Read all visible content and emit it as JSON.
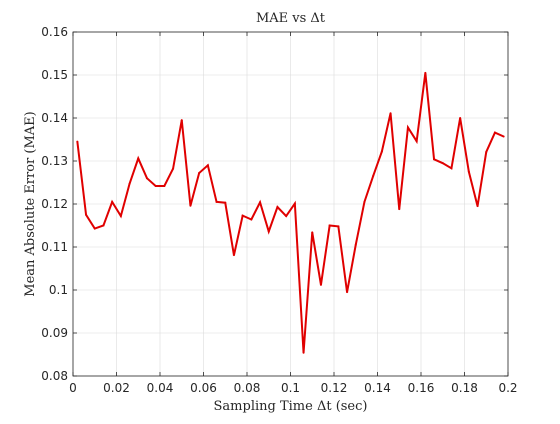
{
  "chart_data": {
    "type": "line",
    "title": "MAE vs Δt",
    "xlabel": "Sampling Time Δt (sec)",
    "ylabel": "Mean Absolute Error (MAE)",
    "xlim": [
      0,
      0.2
    ],
    "ylim": [
      0.08,
      0.16
    ],
    "grid": true,
    "x_ticks": [
      0,
      0.02,
      0.04,
      0.06,
      0.08,
      0.1,
      0.12,
      0.14,
      0.16,
      0.18,
      0.2
    ],
    "x_tick_labels": [
      "0",
      "0.02",
      "0.04",
      "0.06",
      "0.08",
      "0.1",
      "0.12",
      "0.14",
      "0.16",
      "0.18",
      "0.2"
    ],
    "y_ticks": [
      0.08,
      0.09,
      0.1,
      0.11,
      0.12,
      0.13,
      0.14,
      0.15,
      0.16
    ],
    "y_tick_labels": [
      "0.08",
      "0.09",
      "0.1",
      "0.11",
      "0.12",
      "0.13",
      "0.14",
      "0.15",
      "0.16"
    ],
    "series": [
      {
        "name": "MAE",
        "color": "#e00000",
        "x": [
          0.002,
          0.006,
          0.01,
          0.014,
          0.018,
          0.022,
          0.026,
          0.03,
          0.034,
          0.038,
          0.042,
          0.046,
          0.05,
          0.054,
          0.058,
          0.062,
          0.066,
          0.07,
          0.074,
          0.078,
          0.082,
          0.086,
          0.09,
          0.094,
          0.098,
          0.102,
          0.106,
          0.11,
          0.114,
          0.118,
          0.122,
          0.126,
          0.13,
          0.134,
          0.138,
          0.142,
          0.146,
          0.15,
          0.154,
          0.158,
          0.162,
          0.166,
          0.17,
          0.174,
          0.178,
          0.182,
          0.186,
          0.19,
          0.194,
          0.198
        ],
        "values": [
          0.1345,
          0.1175,
          0.1143,
          0.115,
          0.1205,
          0.1172,
          0.1247,
          0.1306,
          0.126,
          0.1242,
          0.1242,
          0.1282,
          0.1395,
          0.1196,
          0.1272,
          0.129,
          0.1205,
          0.1203,
          0.1081,
          0.1173,
          0.1164,
          0.1204,
          0.1136,
          0.1193,
          0.1172,
          0.1201,
          0.0854,
          0.1134,
          0.1012,
          0.115,
          0.1148,
          0.0995,
          0.1105,
          0.1205,
          0.1265,
          0.1322,
          0.1411,
          0.1188,
          0.1378,
          0.1346,
          0.1505,
          0.1304,
          0.1295,
          0.1283,
          0.14,
          0.1275,
          0.1195,
          0.1321,
          0.1366,
          0.1357
        ]
      }
    ]
  }
}
